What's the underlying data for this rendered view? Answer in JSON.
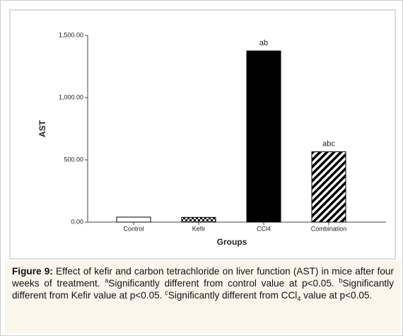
{
  "chart_data": {
    "type": "bar",
    "x_label": "Groups",
    "y_label": "AST",
    "categories": [
      "Control",
      "Kefir",
      "CCl4",
      "Combination"
    ],
    "values": [
      40,
      38,
      1375,
      565
    ],
    "fills": [
      "white",
      "checker",
      "black",
      "hatch"
    ],
    "annotations": [
      {
        "category": "CCl4",
        "text": "ab"
      },
      {
        "category": "Combination",
        "text": "abc"
      }
    ],
    "ylim": [
      0,
      1500
    ],
    "yticks": [
      {
        "value": 0,
        "label": "0.00"
      },
      {
        "value": 500,
        "label": "500.00"
      },
      {
        "value": 1000,
        "label": "1,000.00"
      },
      {
        "value": 1500,
        "label": "1,500.00"
      }
    ]
  },
  "caption": {
    "label": "Figure 9:",
    "segments": [
      {
        "style": "normal",
        "text": "Effect of kefir and carbon tetrachloride on liver function (AST) in mice after four weeks of treatment. "
      },
      {
        "style": "sup",
        "text": "a"
      },
      {
        "style": "normal",
        "text": "Significantly different from control value at p<0.05. "
      },
      {
        "style": "sup",
        "text": "b"
      },
      {
        "style": "normal",
        "text": "Significantly different from Kefir value at p<0.05. "
      },
      {
        "style": "sup",
        "text": "c"
      },
      {
        "style": "normal",
        "text": "Significantly different from CCl"
      },
      {
        "style": "sub",
        "text": "4"
      },
      {
        "style": "normal",
        "text": " value at p<0.05."
      }
    ]
  }
}
